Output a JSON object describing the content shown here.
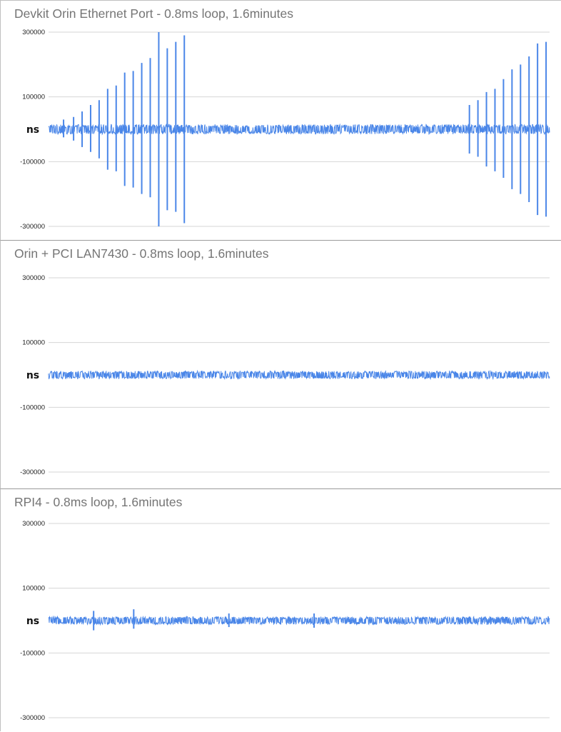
{
  "chart_data": [
    {
      "type": "line",
      "title": "Devkit Orin Ethernet Port - 0.8ms loop, 1.6minutes",
      "xlabel": "",
      "ylabel": "ns",
      "ylim": [
        -300000,
        300000
      ],
      "yticks": [
        300000,
        100000,
        -100000,
        -300000
      ],
      "ytick_labels": [
        "300000",
        "100000",
        "-100000",
        "-300000"
      ],
      "grid": true,
      "color": "#4a86e8",
      "noise_band": [
        -15000,
        15000
      ],
      "spikes": [
        {
          "x": 0.03,
          "high": 30000,
          "low": -25000
        },
        {
          "x": 0.05,
          "high": 38000,
          "low": -35000
        },
        {
          "x": 0.067,
          "high": 55000,
          "low": -55000
        },
        {
          "x": 0.084,
          "high": 75000,
          "low": -70000
        },
        {
          "x": 0.101,
          "high": 90000,
          "low": -90000
        },
        {
          "x": 0.118,
          "high": 125000,
          "low": -125000
        },
        {
          "x": 0.135,
          "high": 135000,
          "low": -130000
        },
        {
          "x": 0.152,
          "high": 175000,
          "low": -175000
        },
        {
          "x": 0.169,
          "high": 180000,
          "low": -180000
        },
        {
          "x": 0.186,
          "high": 205000,
          "low": -200000
        },
        {
          "x": 0.203,
          "high": 220000,
          "low": -210000
        },
        {
          "x": 0.22,
          "high": 300000,
          "low": -300000
        },
        {
          "x": 0.237,
          "high": 250000,
          "low": -250000
        },
        {
          "x": 0.254,
          "high": 270000,
          "low": -255000
        },
        {
          "x": 0.271,
          "high": 290000,
          "low": -290000
        },
        {
          "x": 0.84,
          "high": 75000,
          "low": -75000
        },
        {
          "x": 0.857,
          "high": 90000,
          "low": -85000
        },
        {
          "x": 0.874,
          "high": 115000,
          "low": -115000
        },
        {
          "x": 0.891,
          "high": 125000,
          "low": -130000
        },
        {
          "x": 0.908,
          "high": 155000,
          "low": -150000
        },
        {
          "x": 0.925,
          "high": 185000,
          "low": -185000
        },
        {
          "x": 0.942,
          "high": 200000,
          "low": -200000
        },
        {
          "x": 0.959,
          "high": 225000,
          "low": -225000
        },
        {
          "x": 0.976,
          "high": 265000,
          "low": -265000
        },
        {
          "x": 0.993,
          "high": 270000,
          "low": -270000
        }
      ]
    },
    {
      "type": "line",
      "title": "Orin + PCI LAN7430 - 0.8ms loop, 1.6minutes",
      "xlabel": "",
      "ylabel": "ns",
      "ylim": [
        -300000,
        300000
      ],
      "yticks": [
        300000,
        100000,
        -100000,
        -300000
      ],
      "ytick_labels": [
        "300000",
        "100000",
        "-100000",
        "-300000"
      ],
      "grid": true,
      "color": "#4a86e8",
      "noise_band": [
        -12000,
        12000
      ],
      "spikes": []
    },
    {
      "type": "line",
      "title": "RPI4 - 0.8ms loop, 1.6minutes",
      "xlabel": "",
      "ylabel": "ns",
      "ylim": [
        -300000,
        300000
      ],
      "yticks": [
        300000,
        100000,
        -100000,
        -300000
      ],
      "ytick_labels": [
        "300000",
        "100000",
        "-100000",
        "-300000"
      ],
      "grid": true,
      "color": "#4a86e8",
      "noise_band": [
        -12000,
        12000
      ],
      "spikes": [
        {
          "x": 0.09,
          "high": 30000,
          "low": -30000
        },
        {
          "x": 0.17,
          "high": 35000,
          "low": -25000
        },
        {
          "x": 0.36,
          "high": 22000,
          "low": -20000
        },
        {
          "x": 0.53,
          "high": 22000,
          "low": -22000
        }
      ]
    }
  ]
}
